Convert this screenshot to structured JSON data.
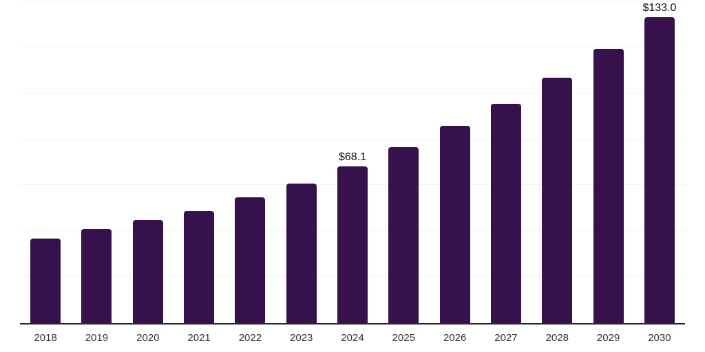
{
  "chart_data": {
    "type": "bar",
    "title": "",
    "xlabel": "",
    "ylabel": "",
    "categories": [
      "2018",
      "2019",
      "2020",
      "2021",
      "2022",
      "2023",
      "2024",
      "2025",
      "2026",
      "2027",
      "2028",
      "2029",
      "2030"
    ],
    "values": [
      36.8,
      41.0,
      44.9,
      48.8,
      54.6,
      60.7,
      68.1,
      76.6,
      85.8,
      95.4,
      106.8,
      119.3,
      133.0
    ],
    "data_labels": [
      "",
      "",
      "",
      "",
      "",
      "",
      "$68.1",
      "",
      "",
      "",
      "",
      "",
      "$133.0"
    ],
    "ylim": [
      0,
      140
    ],
    "gridline_step": 20,
    "grid": "horizontal-only",
    "legend": "none",
    "y_axis_tick_labels_visible": false,
    "colors": {
      "bar": "#35124B",
      "gridline": "#f2f2f4",
      "axis_line": "#26262b",
      "tick_label": "#333333",
      "data_label": "#111111",
      "background": "#ffffff"
    }
  }
}
